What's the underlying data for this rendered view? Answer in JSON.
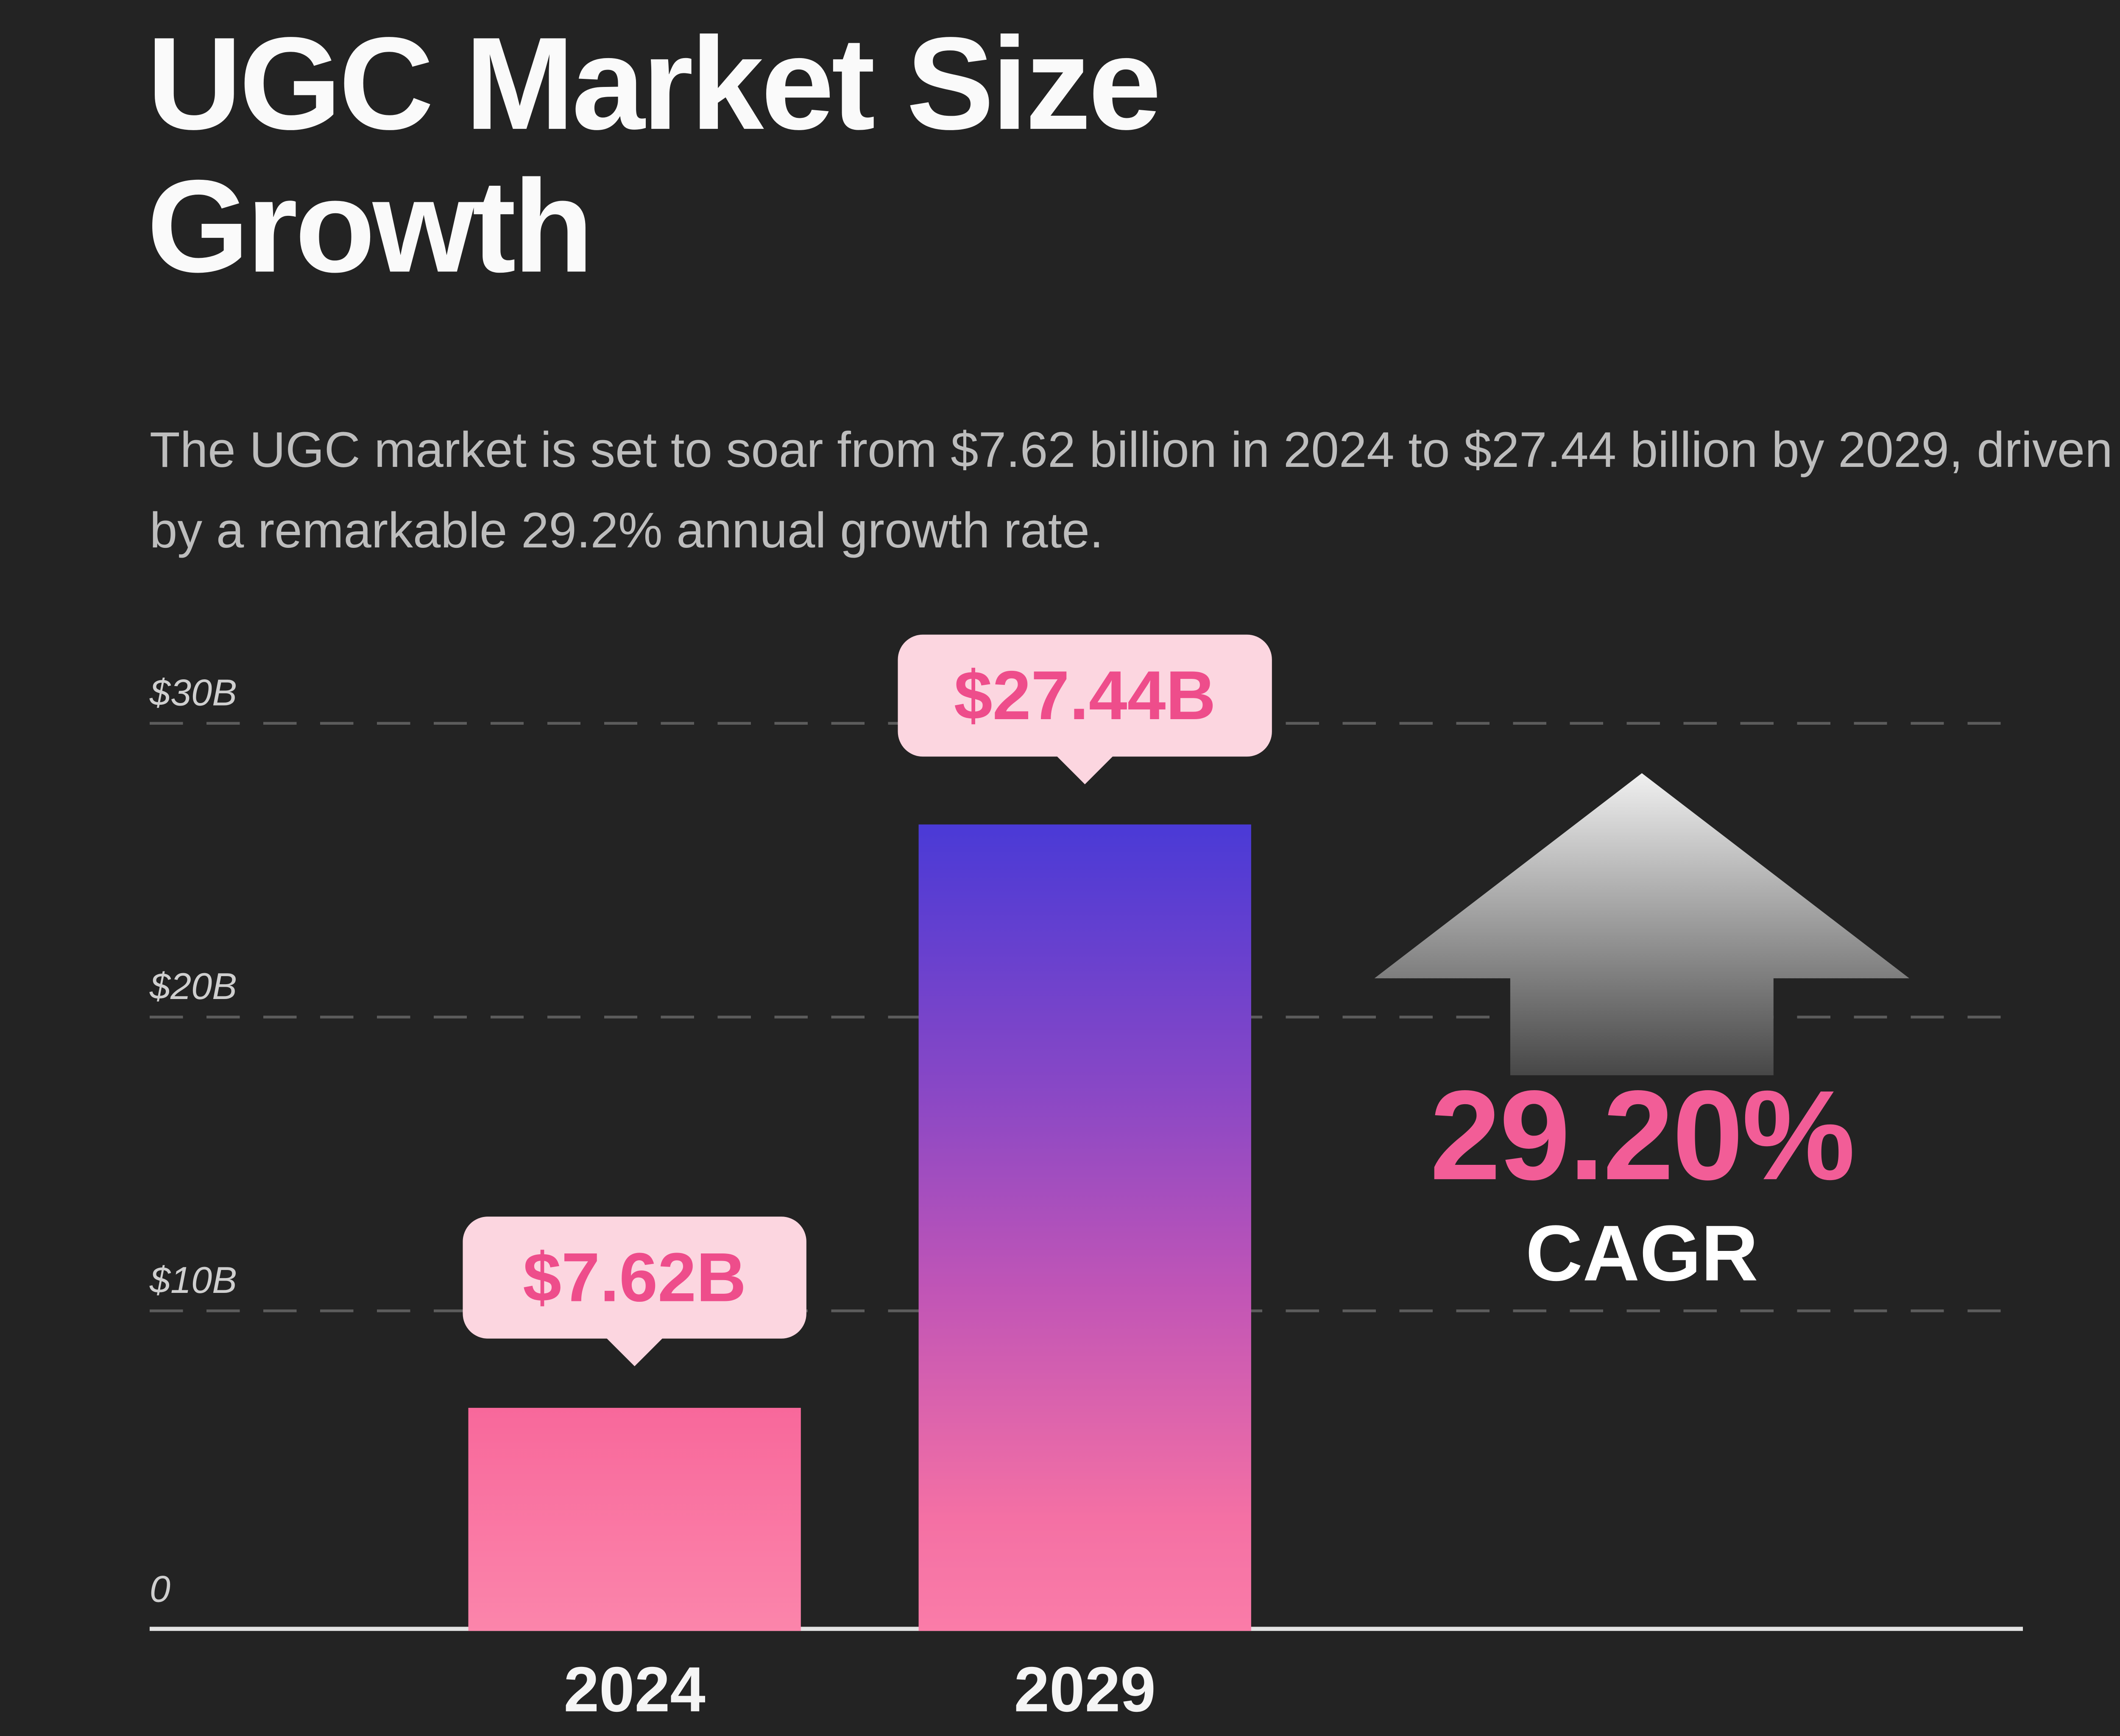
{
  "header": {
    "title": "UGC Market Size\nGrowth",
    "subtitle": "The UGC market is set to soar from $7.62 billion in 2024 to $27.44 billion by 2029, driven by a remarkable 29.2% annual growth rate."
  },
  "chart_data": {
    "type": "bar",
    "title": "UGC Market Size Growth",
    "categories": [
      "2024",
      "2029"
    ],
    "values": [
      7.62,
      27.44
    ],
    "value_labels": [
      "$7.62B",
      "$27.44B"
    ],
    "unit": "USD billions",
    "ylim": [
      0,
      30
    ],
    "yticks": [
      0,
      10,
      20,
      30
    ],
    "ytick_labels": [
      "0",
      "$10B",
      "$20B",
      "$30B"
    ],
    "grid": "horizontal dashed gridlines every $10B",
    "legend": "none",
    "annotation": {
      "value": "29.20%",
      "label": "CAGR",
      "icon": "up-arrow"
    },
    "colors": {
      "background": "#232323",
      "bar_2024": "#f9709f",
      "bar_2029_gradient_top": "#4a3ad6",
      "bar_2029_gradient_bottom": "#fa7ca8",
      "callout_background": "#fcd6e0",
      "callout_text": "#ee4d8b",
      "cagr_text": "#f25d97",
      "arrow_gradient_top": "#f0f0f0",
      "arrow_gradient_bottom": "#474747"
    }
  }
}
